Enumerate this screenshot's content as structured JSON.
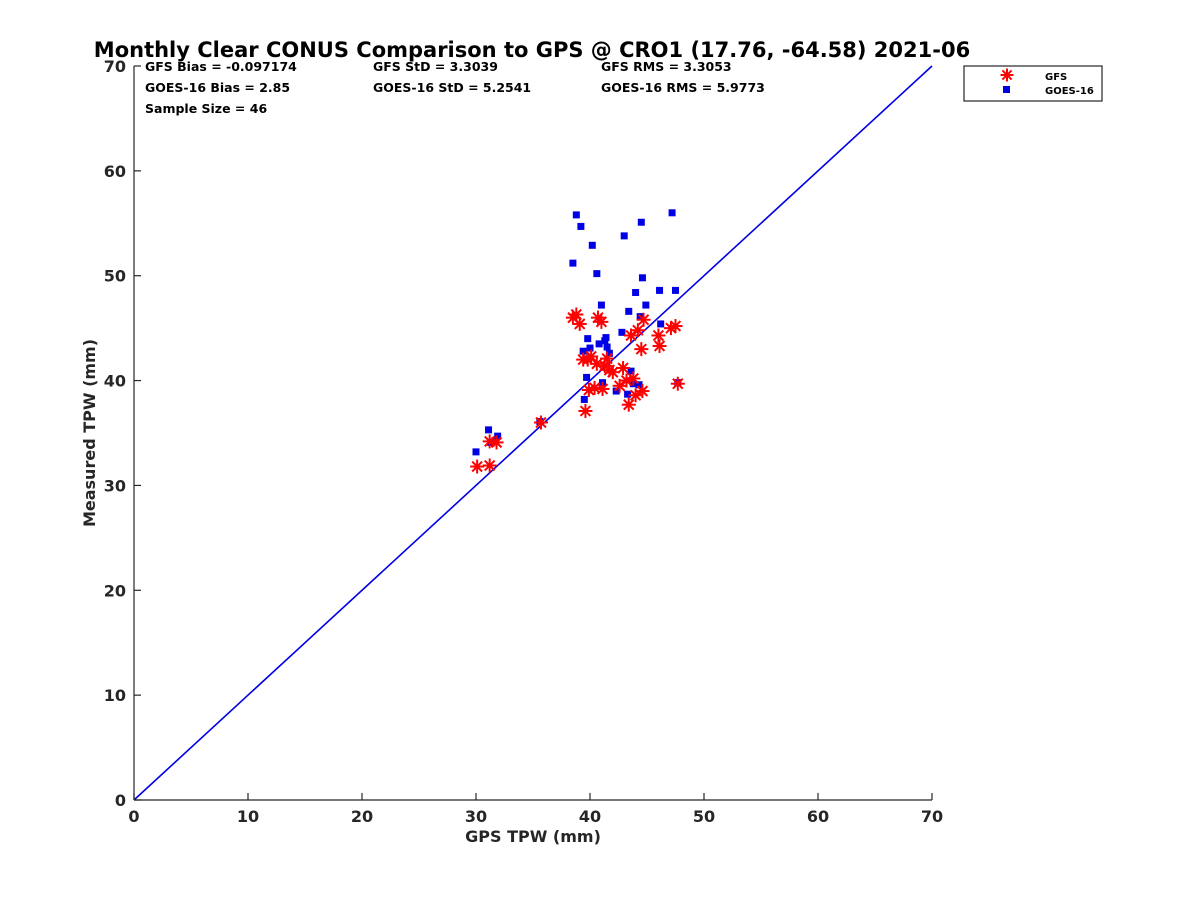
{
  "chart_data": {
    "type": "scatter",
    "title": "Monthly Clear CONUS Comparison to GPS @ CRO1 (17.76, -64.58) 2021-06",
    "xlabel": "GPS TPW (mm)",
    "ylabel": "Measured TPW (mm)",
    "xlim": [
      0,
      70
    ],
    "ylim": [
      0,
      70
    ],
    "xticks": [
      0,
      10,
      20,
      30,
      40,
      50,
      60,
      70
    ],
    "yticks": [
      0,
      10,
      20,
      30,
      40,
      50,
      60,
      70
    ],
    "grid": false,
    "legend_position": "top-right-outside",
    "stats": {
      "gfs_bias": "GFS Bias = -0.097174",
      "gfs_std": "GFS StD = 3.3039",
      "gfs_rms": "GFS RMS = 3.3053",
      "goes_bias": "GOES-16 Bias = 2.85",
      "goes_std": "GOES-16 StD = 5.2541",
      "goes_rms": "GOES-16 RMS = 5.9773",
      "sample_size": "Sample Size = 46"
    },
    "reference_line": {
      "name": "1:1 line",
      "from": [
        0,
        0
      ],
      "to": [
        70,
        70
      ],
      "color": "#0000e6"
    },
    "series": [
      {
        "name": "GFS",
        "marker": "asterisk",
        "color": "#ff0000",
        "points": [
          [
            30.1,
            31.8
          ],
          [
            31.2,
            31.9
          ],
          [
            31.2,
            34.2
          ],
          [
            31.8,
            34.1
          ],
          [
            35.7,
            36.0
          ],
          [
            38.5,
            46.0
          ],
          [
            38.8,
            46.3
          ],
          [
            39.1,
            45.4
          ],
          [
            39.4,
            42.0
          ],
          [
            39.6,
            37.1
          ],
          [
            39.8,
            42.0
          ],
          [
            39.9,
            39.1
          ],
          [
            40.1,
            42.3
          ],
          [
            40.4,
            39.3
          ],
          [
            40.6,
            41.6
          ],
          [
            40.7,
            46.0
          ],
          [
            41.0,
            45.6
          ],
          [
            41.1,
            39.2
          ],
          [
            41.3,
            41.4
          ],
          [
            41.5,
            42.1
          ],
          [
            41.7,
            41.0
          ],
          [
            42.0,
            40.8
          ],
          [
            42.6,
            39.5
          ],
          [
            42.9,
            41.2
          ],
          [
            43.2,
            40.0
          ],
          [
            43.4,
            37.7
          ],
          [
            43.6,
            44.3
          ],
          [
            43.8,
            40.2
          ],
          [
            44.0,
            38.6
          ],
          [
            44.2,
            44.8
          ],
          [
            44.5,
            43.0
          ],
          [
            44.6,
            39.0
          ],
          [
            44.7,
            45.8
          ],
          [
            46.0,
            44.3
          ],
          [
            46.1,
            43.3
          ],
          [
            47.1,
            45.0
          ],
          [
            47.5,
            45.2
          ],
          [
            47.7,
            39.7
          ]
        ]
      },
      {
        "name": "GOES-16",
        "marker": "square",
        "color": "#0000e6",
        "points": [
          [
            30.0,
            33.2
          ],
          [
            31.1,
            35.3
          ],
          [
            31.3,
            34.1
          ],
          [
            31.9,
            34.7
          ],
          [
            35.6,
            36.1
          ],
          [
            38.5,
            51.2
          ],
          [
            38.8,
            55.8
          ],
          [
            39.2,
            54.7
          ],
          [
            39.4,
            42.8
          ],
          [
            39.5,
            38.2
          ],
          [
            39.7,
            40.3
          ],
          [
            39.8,
            44.0
          ],
          [
            40.0,
            43.1
          ],
          [
            40.2,
            52.9
          ],
          [
            40.6,
            50.2
          ],
          [
            40.8,
            43.5
          ],
          [
            41.0,
            47.2
          ],
          [
            41.1,
            39.8
          ],
          [
            41.3,
            43.8
          ],
          [
            41.4,
            44.1
          ],
          [
            41.5,
            43.2
          ],
          [
            41.7,
            42.6
          ],
          [
            42.3,
            39.0
          ],
          [
            42.8,
            44.6
          ],
          [
            43.0,
            53.8
          ],
          [
            43.3,
            38.7
          ],
          [
            43.4,
            46.6
          ],
          [
            43.6,
            40.9
          ],
          [
            43.8,
            39.7
          ],
          [
            44.0,
            48.4
          ],
          [
            44.3,
            39.6
          ],
          [
            44.4,
            46.1
          ],
          [
            44.5,
            55.1
          ],
          [
            44.6,
            49.8
          ],
          [
            44.9,
            47.2
          ],
          [
            46.1,
            48.6
          ],
          [
            46.2,
            45.4
          ],
          [
            47.2,
            56.0
          ],
          [
            47.5,
            48.6
          ],
          [
            47.7,
            39.8
          ]
        ]
      }
    ]
  }
}
